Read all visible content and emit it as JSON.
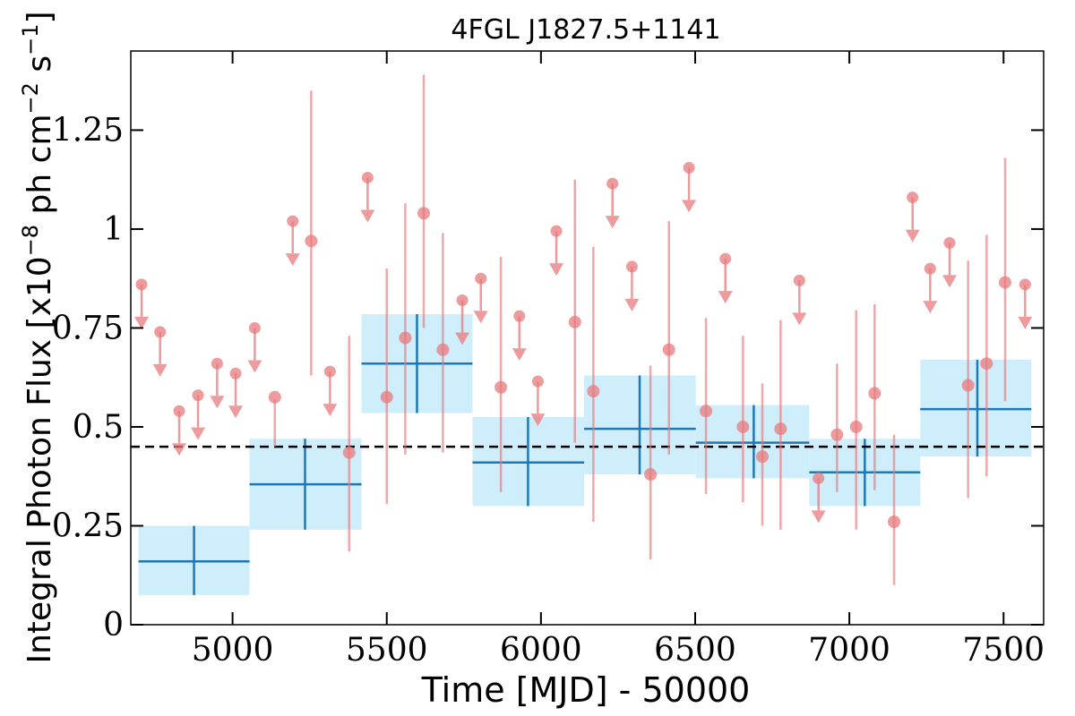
{
  "chart_data": {
    "type": "scatter",
    "title": "4FGL J1827.5+1141",
    "xlabel": "Time [MJD] - 50000",
    "ylabel_parts": {
      "base": "Integral Photon Flux [x10",
      "exp1": "−8",
      "mid": " ph cm",
      "exp2": "−2",
      "mid2": " s",
      "exp3": "−1",
      "end": "]"
    },
    "xlim": [
      4670,
      7630
    ],
    "ylim": [
      0,
      1.45
    ],
    "x_ticks": [
      5000,
      5500,
      6000,
      6500,
      7000,
      7500
    ],
    "x_tick_labels": [
      "5000",
      "5500",
      "6000",
      "6500",
      "7000",
      "7500"
    ],
    "y_ticks": [
      0,
      0.25,
      0.5,
      0.75,
      1.0,
      1.25
    ],
    "y_tick_labels": [
      "0",
      "0.25",
      "0.5",
      "0.75",
      "1",
      "1.25"
    ],
    "reference_flux": 0.45,
    "colors": {
      "point": "#e8797c",
      "bin_line": "#1f77b4",
      "bin_fill": "#cfeefc",
      "reference": "#000000"
    },
    "series": [
      {
        "kind": "binned",
        "points": [
          {
            "x": 4875,
            "x_lo": 4695,
            "x_hi": 5055,
            "y": 0.16,
            "y_lo": 0.075,
            "y_hi": 0.25
          },
          {
            "x": 5235,
            "x_lo": 5055,
            "x_hi": 5418,
            "y": 0.355,
            "y_lo": 0.24,
            "y_hi": 0.47
          },
          {
            "x": 5598,
            "x_lo": 5418,
            "x_hi": 5778,
            "y": 0.66,
            "y_lo": 0.535,
            "y_hi": 0.785
          },
          {
            "x": 5958,
            "x_lo": 5778,
            "x_hi": 6140,
            "y": 0.41,
            "y_lo": 0.3,
            "y_hi": 0.525
          },
          {
            "x": 6320,
            "x_lo": 6140,
            "x_hi": 6502,
            "y": 0.495,
            "y_lo": 0.38,
            "y_hi": 0.63
          },
          {
            "x": 6690,
            "x_lo": 6502,
            "x_hi": 6870,
            "y": 0.46,
            "y_lo": 0.37,
            "y_hi": 0.555
          },
          {
            "x": 7050,
            "x_lo": 6870,
            "x_hi": 7230,
            "y": 0.385,
            "y_lo": 0.3,
            "y_hi": 0.47
          },
          {
            "x": 7415,
            "x_lo": 7230,
            "x_hi": 7590,
            "y": 0.545,
            "y_lo": 0.425,
            "y_hi": 0.67
          }
        ]
      },
      {
        "kind": "detection",
        "points": [
          {
            "x": 5137,
            "y": 0.575,
            "y_lo": 0.45,
            "y_hi": 0.57
          },
          {
            "x": 5255,
            "y": 0.97,
            "y_lo": 0.63,
            "y_hi": 1.35
          },
          {
            "x": 5378,
            "y": 0.435,
            "y_lo": 0.185,
            "y_hi": 0.73
          },
          {
            "x": 5500,
            "y": 0.575,
            "y_lo": 0.305,
            "y_hi": 0.9
          },
          {
            "x": 5560,
            "y": 0.725,
            "y_lo": 0.43,
            "y_hi": 1.065
          },
          {
            "x": 5620,
            "y": 1.04,
            "y_lo": 0.75,
            "y_hi": 1.39
          },
          {
            "x": 5682,
            "y": 0.695,
            "y_lo": 0.435,
            "y_hi": 0.99
          },
          {
            "x": 5870,
            "y": 0.6,
            "y_lo": 0.335,
            "y_hi": 0.93
          },
          {
            "x": 6110,
            "y": 0.765,
            "y_lo": 0.46,
            "y_hi": 1.125
          },
          {
            "x": 6170,
            "y": 0.59,
            "y_lo": 0.26,
            "y_hi": 0.955
          },
          {
            "x": 6355,
            "y": 0.38,
            "y_lo": 0.165,
            "y_hi": 0.655
          },
          {
            "x": 6415,
            "y": 0.695,
            "y_lo": 0.43,
            "y_hi": 1.02
          },
          {
            "x": 6535,
            "y": 0.54,
            "y_lo": 0.33,
            "y_hi": 0.775
          },
          {
            "x": 6655,
            "y": 0.5,
            "y_lo": 0.31,
            "y_hi": 0.73
          },
          {
            "x": 6718,
            "y": 0.425,
            "y_lo": 0.25,
            "y_hi": 0.61
          },
          {
            "x": 6777,
            "y": 0.495,
            "y_lo": 0.24,
            "y_hi": 0.77
          },
          {
            "x": 6960,
            "y": 0.48,
            "y_lo": 0.335,
            "y_hi": 0.66
          },
          {
            "x": 7022,
            "y": 0.5,
            "y_lo": 0.24,
            "y_hi": 0.795
          },
          {
            "x": 7082,
            "y": 0.585,
            "y_lo": 0.34,
            "y_hi": 0.81
          },
          {
            "x": 7145,
            "y": 0.26,
            "y_lo": 0.1,
            "y_hi": 0.48
          },
          {
            "x": 7385,
            "y": 0.605,
            "y_lo": 0.32,
            "y_hi": 0.92
          },
          {
            "x": 7445,
            "y": 0.66,
            "y_lo": 0.375,
            "y_hi": 0.985
          },
          {
            "x": 7505,
            "y": 0.865,
            "y_lo": 0.565,
            "y_hi": 1.18
          }
        ]
      },
      {
        "kind": "upper_limit",
        "points": [
          {
            "x": 4705,
            "y": 0.86
          },
          {
            "x": 4765,
            "y": 0.74
          },
          {
            "x": 4827,
            "y": 0.54
          },
          {
            "x": 4888,
            "y": 0.58
          },
          {
            "x": 4950,
            "y": 0.66
          },
          {
            "x": 5010,
            "y": 0.635
          },
          {
            "x": 5072,
            "y": 0.75
          },
          {
            "x": 5195,
            "y": 1.02
          },
          {
            "x": 5316,
            "y": 0.64
          },
          {
            "x": 5438,
            "y": 1.13
          },
          {
            "x": 5745,
            "y": 0.82
          },
          {
            "x": 5805,
            "y": 0.875
          },
          {
            "x": 5930,
            "y": 0.78
          },
          {
            "x": 5990,
            "y": 0.615
          },
          {
            "x": 6050,
            "y": 0.995
          },
          {
            "x": 6232,
            "y": 1.115
          },
          {
            "x": 6295,
            "y": 0.905
          },
          {
            "x": 6480,
            "y": 1.155
          },
          {
            "x": 6598,
            "y": 0.925
          },
          {
            "x": 6838,
            "y": 0.87
          },
          {
            "x": 6900,
            "y": 0.37
          },
          {
            "x": 7205,
            "y": 1.08
          },
          {
            "x": 7262,
            "y": 0.9
          },
          {
            "x": 7325,
            "y": 0.965
          },
          {
            "x": 7570,
            "y": 0.86
          }
        ]
      }
    ]
  }
}
